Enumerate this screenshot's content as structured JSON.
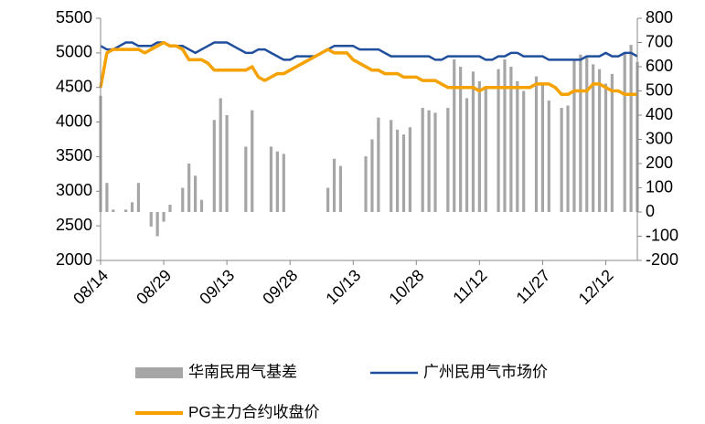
{
  "chart_data": {
    "type": "bar-line",
    "categories": [
      "08/14",
      null,
      null,
      null,
      null,
      null,
      null,
      null,
      null,
      null,
      "08/29",
      null,
      null,
      null,
      null,
      null,
      null,
      null,
      null,
      null,
      "09/13",
      null,
      null,
      null,
      null,
      null,
      null,
      null,
      null,
      null,
      "09/28",
      null,
      null,
      null,
      null,
      null,
      null,
      null,
      null,
      null,
      "10/13",
      null,
      null,
      null,
      null,
      null,
      null,
      null,
      null,
      null,
      "10/28",
      null,
      null,
      null,
      null,
      null,
      null,
      null,
      null,
      null,
      "11/12",
      null,
      null,
      null,
      null,
      null,
      null,
      null,
      null,
      null,
      "11/27",
      null,
      null,
      null,
      null,
      null,
      null,
      null,
      null,
      null,
      "12/12",
      null,
      null,
      null,
      null,
      null
    ],
    "ylim": [
      2000,
      5500
    ],
    "yticks": [
      2000,
      2500,
      3000,
      3500,
      4000,
      4500,
      5000,
      5500
    ],
    "y2lim": [
      -200,
      800
    ],
    "y2ticks": [
      -200,
      -100,
      0,
      100,
      200,
      300,
      400,
      500,
      600,
      700,
      800
    ],
    "series": [
      {
        "name": "华南民用气基差",
        "type": "bar",
        "axis": "y2",
        "color": "#a6a6a6",
        "values": [
          480,
          120,
          10,
          null,
          10,
          40,
          120,
          null,
          -60,
          -100,
          -40,
          30,
          null,
          100,
          200,
          150,
          50,
          null,
          380,
          470,
          400,
          null,
          null,
          270,
          420,
          null,
          null,
          270,
          250,
          240,
          null,
          null,
          null,
          null,
          null,
          null,
          100,
          220,
          190,
          null,
          null,
          null,
          230,
          300,
          390,
          null,
          380,
          340,
          320,
          350,
          null,
          430,
          420,
          410,
          null,
          430,
          630,
          600,
          470,
          580,
          540,
          520,
          null,
          590,
          630,
          600,
          540,
          500,
          null,
          560,
          530,
          460,
          null,
          430,
          440,
          630,
          650,
          640,
          610,
          590,
          530,
          570,
          null,
          660,
          690,
          620
        ]
      },
      {
        "name": "广州民用气市场价",
        "type": "line",
        "color": "#1f4e9c",
        "values": [
          5100,
          5050,
          5050,
          5100,
          5150,
          5150,
          5100,
          5100,
          5100,
          5150,
          5150,
          5100,
          5100,
          5100,
          5050,
          5000,
          5050,
          5100,
          5150,
          5150,
          5150,
          5100,
          5050,
          5000,
          5000,
          5050,
          5050,
          5000,
          4950,
          4900,
          4900,
          4950,
          4950,
          4950,
          4950,
          5000,
          5050,
          5100,
          5100,
          5100,
          5100,
          5050,
          5050,
          5050,
          5050,
          5000,
          4950,
          4950,
          4950,
          4950,
          4950,
          4950,
          4950,
          4900,
          4900,
          4950,
          4950,
          4950,
          4950,
          4950,
          4950,
          4900,
          4900,
          4950,
          4950,
          5000,
          5000,
          4950,
          4950,
          4950,
          4950,
          4900,
          4900,
          4900,
          4900,
          4900,
          4900,
          4950,
          4950,
          4950,
          5000,
          4950,
          4950,
          5000,
          5000,
          4950
        ]
      },
      {
        "name": "PG主力合约收盘价",
        "type": "line",
        "color": "#f5a100",
        "values": [
          4500,
          5000,
          5050,
          5050,
          5050,
          5050,
          5050,
          5000,
          5050,
          5100,
          5150,
          5100,
          5100,
          5050,
          4900,
          4900,
          4900,
          4850,
          4750,
          4750,
          4750,
          4750,
          4750,
          4750,
          4800,
          4650,
          4600,
          4650,
          4700,
          4700,
          4750,
          4800,
          4850,
          4900,
          4950,
          5000,
          5050,
          5000,
          5000,
          5000,
          4900,
          4850,
          4800,
          4750,
          4750,
          4700,
          4700,
          4700,
          4650,
          4650,
          4650,
          4600,
          4600,
          4600,
          4550,
          4500,
          4500,
          4500,
          4500,
          4500,
          4450,
          4500,
          4500,
          4500,
          4500,
          4500,
          4500,
          4500,
          4500,
          4550,
          4550,
          4550,
          4500,
          4400,
          4400,
          4450,
          4450,
          4450,
          4550,
          4550,
          4500,
          4450,
          4450,
          4400,
          4400,
          4400
        ]
      }
    ]
  }
}
